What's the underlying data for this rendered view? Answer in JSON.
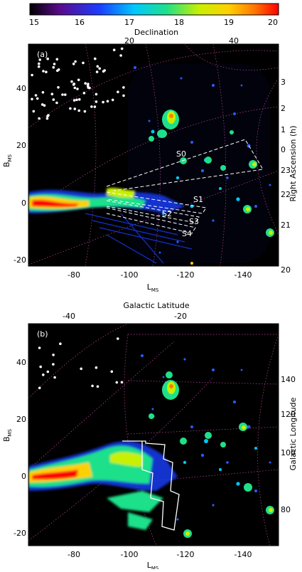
{
  "colorbar": {
    "ticks": [
      "15",
      "16",
      "17",
      "18",
      "19",
      "20"
    ],
    "range": [
      15,
      20
    ],
    "stops": [
      "#000000",
      "#5a0a8c",
      "#1b3dff",
      "#00c8ff",
      "#1fe08a",
      "#c8f000",
      "#ffd000",
      "#ff7a00",
      "#ff0000"
    ]
  },
  "panel_a": {
    "label": "(a)",
    "top_axis_title": "Declination",
    "top_ticks": [
      "20",
      "40"
    ],
    "right_axis_title": "Right Ascension (h)",
    "right_ticks": [
      "3",
      "2",
      "1",
      "0",
      "23",
      "22",
      "21",
      "20"
    ],
    "left_axis_title": "B",
    "left_axis_sub": "MS",
    "left_ticks": [
      "40",
      "20",
      "0",
      "-20"
    ],
    "bottom_axis_title": "L",
    "bottom_axis_sub": "MS",
    "bottom_ticks": [
      "-80",
      "-100",
      "-120",
      "-140"
    ],
    "stream_labels": [
      "S0",
      "S1",
      "S2",
      "S3",
      "S4"
    ]
  },
  "panel_b": {
    "label": "(b)",
    "top_axis_title": "Galactic Latitude",
    "top_ticks": [
      "-40",
      "-20"
    ],
    "right_axis_title": "Galactic Longitude",
    "right_ticks": [
      "140",
      "120",
      "100",
      "80"
    ],
    "left_axis_title": "B",
    "left_axis_sub": "MS",
    "left_ticks": [
      "40",
      "20",
      "0",
      "-20"
    ],
    "bottom_axis_title": "L",
    "bottom_axis_sub": "MS",
    "bottom_ticks": [
      "-80",
      "-100",
      "-120",
      "-140"
    ]
  },
  "colors": {
    "background": "#000000",
    "grid": "#c04a9a",
    "stars": "#ffffff",
    "boundary": "#ffffff"
  }
}
